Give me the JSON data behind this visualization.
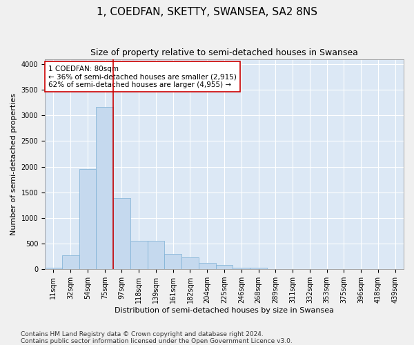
{
  "title": "1, COEDFAN, SKETTY, SWANSEA, SA2 8NS",
  "subtitle": "Size of property relative to semi-detached houses in Swansea",
  "xlabel": "Distribution of semi-detached houses by size in Swansea",
  "ylabel": "Number of semi-detached properties",
  "categories": [
    "11sqm",
    "32sqm",
    "54sqm",
    "75sqm",
    "97sqm",
    "118sqm",
    "139sqm",
    "161sqm",
    "182sqm",
    "204sqm",
    "225sqm",
    "246sqm",
    "268sqm",
    "289sqm",
    "311sqm",
    "332sqm",
    "353sqm",
    "375sqm",
    "396sqm",
    "418sqm",
    "439sqm"
  ],
  "values": [
    30,
    270,
    1960,
    3170,
    1390,
    560,
    560,
    300,
    230,
    130,
    80,
    30,
    30,
    0,
    0,
    0,
    0,
    0,
    0,
    0,
    0
  ],
  "bar_color": "#c5d9ee",
  "bar_edge_color": "#7aafd4",
  "vline_x_index": 3.5,
  "vline_color": "#cc0000",
  "annotation_text": "1 COEDFAN: 80sqm\n← 36% of semi-detached houses are smaller (2,915)\n62% of semi-detached houses are larger (4,955) →",
  "annotation_box_facecolor": "#ffffff",
  "annotation_box_edgecolor": "#cc0000",
  "ylim": [
    0,
    4100
  ],
  "yticks": [
    0,
    500,
    1000,
    1500,
    2000,
    2500,
    3000,
    3500,
    4000
  ],
  "fig_facecolor": "#f0f0f0",
  "plot_facecolor": "#dce8f5",
  "grid_color": "#ffffff",
  "title_fontsize": 11,
  "subtitle_fontsize": 9,
  "axis_label_fontsize": 8,
  "tick_fontsize": 7,
  "annotation_fontsize": 7.5,
  "footnote_fontsize": 6.5,
  "footnote": "Contains HM Land Registry data © Crown copyright and database right 2024.\nContains public sector information licensed under the Open Government Licence v3.0."
}
